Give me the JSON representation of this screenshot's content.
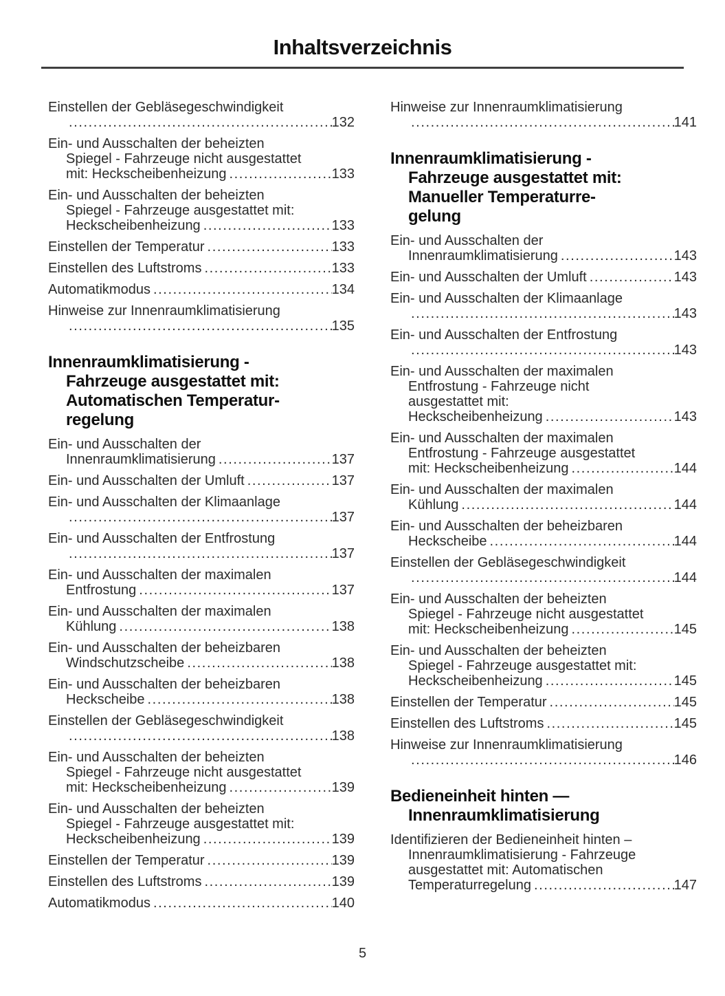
{
  "page": {
    "title": "Inhaltsverzeichnis",
    "page_number": "5"
  },
  "toc": {
    "columns": [
      {
        "blocks": [
          {
            "type": "entry",
            "lines": [
              "Einstellen der Gebläsegeschwindigkeit"
            ],
            "last": "",
            "page": "132"
          },
          {
            "type": "entry",
            "lines": [
              "Ein- und Ausschalten der beheizten",
              "Spiegel - Fahrzeuge nicht ausgestattet"
            ],
            "last": "mit: Heckscheibenheizung",
            "page": "133"
          },
          {
            "type": "entry",
            "lines": [
              "Ein- und Ausschalten der beheizten",
              "Spiegel - Fahrzeuge ausgestattet mit:"
            ],
            "last": "Heckscheibenheizung",
            "page": "133"
          },
          {
            "type": "entry",
            "lines": [],
            "last": "Einstellen der Temperatur",
            "page": "133"
          },
          {
            "type": "entry",
            "lines": [],
            "last": "Einstellen des Luftstroms",
            "page": "133"
          },
          {
            "type": "entry",
            "lines": [],
            "last": "Automatikmodus",
            "page": "134"
          },
          {
            "type": "entry",
            "lines": [
              "Hinweise zur Innenraumklimatisierung"
            ],
            "last": "",
            "page": "135"
          },
          {
            "type": "heading",
            "lines": [
              "Innenraumklimatisierung -",
              "Fahrzeuge ausgestattet mit:",
              "Automatischen Temperatur-",
              "regelung"
            ]
          },
          {
            "type": "entry",
            "lines": [
              "Ein- und Ausschalten der"
            ],
            "last": "Innenraumklimatisierung",
            "page": "137"
          },
          {
            "type": "entry",
            "lines": [],
            "last": "Ein- und Ausschalten der Umluft",
            "page": "137"
          },
          {
            "type": "entry",
            "lines": [
              "Ein- und Ausschalten der Klimaanlage"
            ],
            "last": "",
            "page": "137"
          },
          {
            "type": "entry",
            "lines": [
              "Ein- und Ausschalten der Entfrostung"
            ],
            "last": "",
            "page": "137"
          },
          {
            "type": "entry",
            "lines": [
              "Ein- und Ausschalten der maximalen"
            ],
            "last": "Entfrostung",
            "page": "137"
          },
          {
            "type": "entry",
            "lines": [
              "Ein- und Ausschalten der maximalen"
            ],
            "last": "Kühlung",
            "page": "138"
          },
          {
            "type": "entry",
            "lines": [
              "Ein- und Ausschalten der beheizbaren"
            ],
            "last": "Windschutzscheibe",
            "page": "138"
          },
          {
            "type": "entry",
            "lines": [
              "Ein- und Ausschalten der beheizbaren"
            ],
            "last": "Heckscheibe",
            "page": "138"
          },
          {
            "type": "entry",
            "lines": [
              "Einstellen der Gebläsegeschwindigkeit"
            ],
            "last": "",
            "page": "138"
          },
          {
            "type": "entry",
            "lines": [
              "Ein- und Ausschalten der beheizten",
              "Spiegel - Fahrzeuge nicht ausgestattet"
            ],
            "last": "mit: Heckscheibenheizung",
            "page": "139"
          },
          {
            "type": "entry",
            "lines": [
              "Ein- und Ausschalten der beheizten",
              "Spiegel - Fahrzeuge ausgestattet mit:"
            ],
            "last": "Heckscheibenheizung",
            "page": "139"
          },
          {
            "type": "entry",
            "lines": [],
            "last": "Einstellen der Temperatur",
            "page": "139"
          },
          {
            "type": "entry",
            "lines": [],
            "last": "Einstellen des Luftstroms",
            "page": "139"
          },
          {
            "type": "entry",
            "lines": [],
            "last": "Automatikmodus",
            "page": "140"
          }
        ]
      },
      {
        "blocks": [
          {
            "type": "entry",
            "lines": [
              "Hinweise zur Innenraumklimatisierung"
            ],
            "last": "",
            "page": "141"
          },
          {
            "type": "heading",
            "lines": [
              "Innenraumklimatisierung -",
              "Fahrzeuge ausgestattet mit:",
              "Manueller Temperaturre-",
              "gelung"
            ]
          },
          {
            "type": "entry",
            "lines": [
              "Ein- und Ausschalten der"
            ],
            "last": "Innenraumklimatisierung",
            "page": "143"
          },
          {
            "type": "entry",
            "lines": [],
            "last": "Ein- und Ausschalten der Umluft",
            "page": "143"
          },
          {
            "type": "entry",
            "lines": [
              "Ein- und Ausschalten der Klimaanlage"
            ],
            "last": "",
            "page": "143"
          },
          {
            "type": "entry",
            "lines": [
              "Ein- und Ausschalten der Entfrostung"
            ],
            "last": "",
            "page": "143"
          },
          {
            "type": "entry",
            "lines": [
              "Ein- und Ausschalten der maximalen",
              "Entfrostung - Fahrzeuge nicht",
              "ausgestattet mit:"
            ],
            "last": "Heckscheibenheizung",
            "page": "143"
          },
          {
            "type": "entry",
            "lines": [
              "Ein- und Ausschalten der maximalen",
              "Entfrostung - Fahrzeuge ausgestattet"
            ],
            "last": "mit: Heckscheibenheizung",
            "page": "144"
          },
          {
            "type": "entry",
            "lines": [
              "Ein- und Ausschalten der maximalen"
            ],
            "last": "Kühlung",
            "page": "144"
          },
          {
            "type": "entry",
            "lines": [
              "Ein- und Ausschalten der beheizbaren"
            ],
            "last": "Heckscheibe",
            "page": "144"
          },
          {
            "type": "entry",
            "lines": [
              "Einstellen der Gebläsegeschwindigkeit"
            ],
            "last": "",
            "page": "144"
          },
          {
            "type": "entry",
            "lines": [
              "Ein- und Ausschalten der beheizten",
              "Spiegel - Fahrzeuge nicht ausgestattet"
            ],
            "last": "mit: Heckscheibenheizung",
            "page": "145"
          },
          {
            "type": "entry",
            "lines": [
              "Ein- und Ausschalten der beheizten",
              "Spiegel - Fahrzeuge ausgestattet mit:"
            ],
            "last": "Heckscheibenheizung",
            "page": "145"
          },
          {
            "type": "entry",
            "lines": [],
            "last": "Einstellen der Temperatur",
            "page": "145"
          },
          {
            "type": "entry",
            "lines": [],
            "last": "Einstellen des Luftstroms",
            "page": "145"
          },
          {
            "type": "entry",
            "lines": [
              "Hinweise zur Innenraumklimatisierung"
            ],
            "last": "",
            "page": "146"
          },
          {
            "type": "heading",
            "lines": [
              "Bedieneinheit hinten —",
              "Innenraumklimatisierung"
            ]
          },
          {
            "type": "entry",
            "lines": [
              "Identifizieren der Bedieneinheit hinten –",
              "Innenraumklimatisierung - Fahrzeuge",
              "ausgestattet mit: Automatischen"
            ],
            "last": "Temperaturregelung",
            "page": "147"
          }
        ]
      }
    ]
  }
}
